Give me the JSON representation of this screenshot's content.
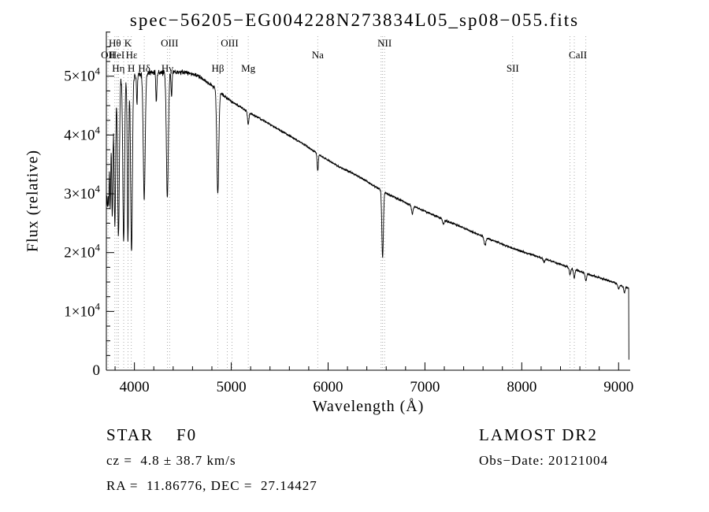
{
  "title": "spec−56205−EG004228N273834L05_sp08−055.fits",
  "footer": {
    "class_label": "STAR    F0",
    "survey": "LAMOST DR2",
    "cz": "cz =  4.8 ± 38.7 km/s",
    "obs_date": "Obs−Date: 20121004",
    "radec": "RA =  11.86776, DEC =  27.14427"
  },
  "chart_data": {
    "type": "line",
    "title": "spec−56205−EG004228N273834L05_sp08−055.fits",
    "xlabel": "Wavelength (Å)",
    "ylabel": "Flux (relative)",
    "xlim": [
      3710,
      9120
    ],
    "ylim": [
      0,
      57600
    ],
    "xticks": [
      4000,
      5000,
      6000,
      7000,
      8000,
      9000
    ],
    "x_minor_step": 200,
    "yticks": [
      {
        "value": 0,
        "label": "0"
      },
      {
        "value": 10000,
        "label": "1×10^4"
      },
      {
        "value": 20000,
        "label": "2×10^4"
      },
      {
        "value": 30000,
        "label": "3×10^4"
      },
      {
        "value": 40000,
        "label": "4×10^4"
      },
      {
        "value": 50000,
        "label": "5×10^4"
      }
    ],
    "y_minor_step": 2500,
    "grid": false,
    "legend": "none",
    "line_color": "#000000",
    "marker_line_color": "#999999",
    "spectral_markers": [
      {
        "label": "OII",
        "wavelength": 3727,
        "row": 1
      },
      {
        "label": "Hθ",
        "wavelength": 3798,
        "row": 0
      },
      {
        "label": "HeI",
        "wavelength": 3820,
        "row": 1
      },
      {
        "label": "Hη",
        "wavelength": 3835,
        "row": 2
      },
      {
        "label": "K",
        "wavelength": 3933,
        "row": 0
      },
      {
        "label": "Hε",
        "wavelength": 3970,
        "row": 1
      },
      {
        "label": "H",
        "wavelength": 3968,
        "row": 2
      },
      {
        "label": "Hδ",
        "wavelength": 4101,
        "row": 2
      },
      {
        "label": "Hγ",
        "wavelength": 4340,
        "row": 2
      },
      {
        "label": "OIII",
        "wavelength": 4363,
        "row": 0
      },
      {
        "label": "Hβ",
        "wavelength": 4861,
        "row": 2
      },
      {
        "label": "OIII",
        "wavelength": 4983,
        "row": 0
      },
      {
        "label": "Mg",
        "wavelength": 5175,
        "row": 2
      },
      {
        "label": "Na",
        "wavelength": 5893,
        "row": 1
      },
      {
        "label": "NII",
        "wavelength": 6583,
        "row": 0
      },
      {
        "label": "SII",
        "wavelength": 7906,
        "row": 2
      },
      {
        "label": "CaII",
        "wavelength": 8580,
        "row": 1
      }
    ],
    "marker_wavelengths": [
      3727,
      3798,
      3820,
      3835,
      3889,
      3933,
      3968,
      4101,
      4340,
      4363,
      4861,
      4959,
      5007,
      5175,
      5893,
      6548,
      6563,
      6583,
      7906,
      8498,
      8542,
      8662
    ],
    "continuum_points": [
      [
        3710,
        47000
      ],
      [
        3760,
        48800
      ],
      [
        3800,
        49400
      ],
      [
        3860,
        49800
      ],
      [
        3920,
        50000
      ],
      [
        3980,
        50200
      ],
      [
        4050,
        50400
      ],
      [
        4150,
        50600
      ],
      [
        4250,
        50600
      ],
      [
        4350,
        50600
      ],
      [
        4450,
        50700
      ],
      [
        4550,
        50600
      ],
      [
        4650,
        50100
      ],
      [
        4750,
        49000
      ],
      [
        4850,
        47800
      ],
      [
        4950,
        46300
      ],
      [
        5050,
        45200
      ],
      [
        5150,
        44200
      ],
      [
        5250,
        43200
      ],
      [
        5350,
        42300
      ],
      [
        5450,
        41300
      ],
      [
        5550,
        40400
      ],
      [
        5650,
        39400
      ],
      [
        5750,
        38400
      ],
      [
        5850,
        37300
      ],
      [
        5950,
        36200
      ],
      [
        6050,
        35200
      ],
      [
        6150,
        34300
      ],
      [
        6250,
        33500
      ],
      [
        6350,
        32600
      ],
      [
        6450,
        31600
      ],
      [
        6550,
        30600
      ],
      [
        6650,
        29700
      ],
      [
        6750,
        28900
      ],
      [
        6850,
        28100
      ],
      [
        6950,
        27400
      ],
      [
        7100,
        26300
      ],
      [
        7250,
        25200
      ],
      [
        7400,
        24200
      ],
      [
        7550,
        23100
      ],
      [
        7700,
        22100
      ],
      [
        7850,
        21100
      ],
      [
        8000,
        20200
      ],
      [
        8150,
        19400
      ],
      [
        8300,
        18600
      ],
      [
        8450,
        17700
      ],
      [
        8600,
        16800
      ],
      [
        8750,
        16000
      ],
      [
        8900,
        15200
      ],
      [
        9000,
        14600
      ],
      [
        9060,
        14100
      ],
      [
        9105,
        14000
      ]
    ],
    "absorption_lines": [
      {
        "center": 3712,
        "depth": 0.3,
        "sigma": 5
      },
      {
        "center": 3722,
        "depth": 0.34,
        "sigma": 5
      },
      {
        "center": 3734,
        "depth": 0.38,
        "sigma": 5.5
      },
      {
        "center": 3750,
        "depth": 0.42,
        "sigma": 6
      },
      {
        "center": 3771,
        "depth": 0.46,
        "sigma": 7
      },
      {
        "center": 3798,
        "depth": 0.5,
        "sigma": 8
      },
      {
        "center": 3835,
        "depth": 0.54,
        "sigma": 9
      },
      {
        "center": 3889,
        "depth": 0.56,
        "sigma": 9
      },
      {
        "center": 3933,
        "depth": 0.56,
        "sigma": 7
      },
      {
        "center": 3970,
        "depth": 0.6,
        "sigma": 9
      },
      {
        "center": 4026,
        "depth": 0.1,
        "sigma": 5
      },
      {
        "center": 4101,
        "depth": 0.42,
        "sigma": 10
      },
      {
        "center": 4226,
        "depth": 0.1,
        "sigma": 5
      },
      {
        "center": 4340,
        "depth": 0.42,
        "sigma": 10
      },
      {
        "center": 4383,
        "depth": 0.08,
        "sigma": 5
      },
      {
        "center": 4861,
        "depth": 0.37,
        "sigma": 10
      },
      {
        "center": 5175,
        "depth": 0.05,
        "sigma": 7
      },
      {
        "center": 5893,
        "depth": 0.08,
        "sigma": 6
      },
      {
        "center": 6563,
        "depth": 0.37,
        "sigma": 8
      },
      {
        "center": 6870,
        "depth": 0.05,
        "sigma": 8
      },
      {
        "center": 7190,
        "depth": 0.03,
        "sigma": 8
      },
      {
        "center": 7620,
        "depth": 0.06,
        "sigma": 10
      },
      {
        "center": 8230,
        "depth": 0.03,
        "sigma": 8
      },
      {
        "center": 8498,
        "depth": 0.07,
        "sigma": 7
      },
      {
        "center": 8542,
        "depth": 0.09,
        "sigma": 7
      },
      {
        "center": 8662,
        "depth": 0.08,
        "sigma": 7
      },
      {
        "center": 9000,
        "depth": 0.05,
        "sigma": 8
      },
      {
        "center": 9060,
        "depth": 0.07,
        "sigma": 6
      }
    ],
    "noise": {
      "seed": 11,
      "base": 260,
      "blue_slope": 0.42,
      "blue_limit": 5200
    },
    "sample_step": 2,
    "edge_drop": {
      "wavelength": 9106,
      "flux": 1800
    }
  }
}
